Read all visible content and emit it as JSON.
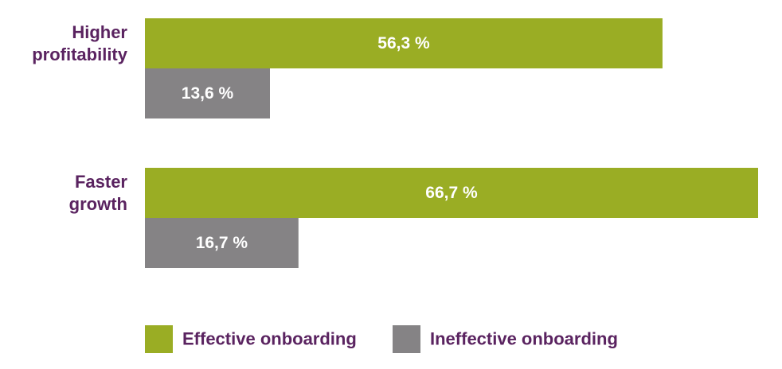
{
  "colors": {
    "effective": "#9aad24",
    "ineffective": "#858385",
    "label_text": "#5a2360",
    "bar_text": "#ffffff"
  },
  "chart_data": {
    "type": "bar",
    "orientation": "horizontal",
    "categories": [
      [
        "Higher",
        "profitability"
      ],
      [
        "Faster",
        "growth"
      ]
    ],
    "series": [
      {
        "name": "Effective onboarding",
        "values": [
          56.3,
          66.7
        ],
        "value_labels": [
          "56,3 %",
          "66,7 %"
        ],
        "color": "#9aad24"
      },
      {
        "name": "Ineffective onboarding",
        "values": [
          13.6,
          16.7
        ],
        "value_labels": [
          "13,6 %",
          "16,7 %"
        ],
        "color": "#858385"
      }
    ],
    "xlim": [
      0,
      66.7
    ],
    "grid": false,
    "legend_position": "bottom-left"
  }
}
